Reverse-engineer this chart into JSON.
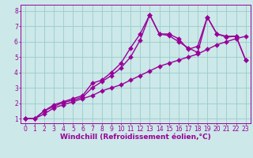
{
  "line1_x": [
    0,
    1,
    2,
    3,
    4,
    5,
    6,
    7,
    8,
    9,
    10,
    11,
    12,
    13,
    14,
    15,
    16,
    17,
    18,
    19,
    20,
    21,
    22,
    23
  ],
  "line1_y": [
    1.0,
    1.0,
    1.3,
    1.7,
    1.9,
    2.1,
    2.3,
    2.5,
    2.8,
    3.0,
    3.2,
    3.5,
    3.8,
    4.1,
    4.4,
    4.6,
    4.8,
    5.0,
    5.2,
    5.5,
    5.8,
    6.0,
    6.2,
    6.35
  ],
  "line2_x": [
    0,
    1,
    2,
    3,
    4,
    5,
    6,
    7,
    8,
    9,
    10,
    11,
    12,
    13,
    14,
    15,
    16,
    17,
    18,
    19,
    20,
    21,
    22,
    23
  ],
  "line2_y": [
    1.0,
    1.0,
    1.5,
    1.9,
    2.1,
    2.3,
    2.5,
    3.3,
    3.5,
    4.0,
    4.6,
    5.6,
    6.5,
    7.75,
    6.5,
    6.5,
    6.2,
    5.5,
    5.7,
    7.6,
    6.5,
    6.35,
    6.35,
    4.8
  ],
  "line3_x": [
    0,
    1,
    2,
    3,
    4,
    5,
    6,
    7,
    8,
    9,
    10,
    11,
    12,
    13,
    14,
    15,
    16,
    17,
    18,
    19,
    20,
    21,
    22,
    23
  ],
  "line3_y": [
    1.0,
    1.0,
    1.5,
    1.8,
    2.05,
    2.2,
    2.4,
    3.0,
    3.4,
    3.8,
    4.3,
    5.0,
    6.1,
    7.75,
    6.5,
    6.4,
    6.0,
    5.6,
    5.3,
    7.6,
    6.5,
    6.3,
    6.35,
    4.8
  ],
  "color": "#990099",
  "bg_color": "#cce8e8",
  "grid_color": "#99cccc",
  "xlabel": "Windchill (Refroidissement éolien,°C)",
  "xlim_min": -0.5,
  "xlim_max": 23.5,
  "ylim_min": 0.7,
  "ylim_max": 8.4,
  "xticks": [
    0,
    1,
    2,
    3,
    4,
    5,
    6,
    7,
    8,
    9,
    10,
    11,
    12,
    13,
    14,
    15,
    16,
    17,
    18,
    19,
    20,
    21,
    22,
    23
  ],
  "yticks": [
    1,
    2,
    3,
    4,
    5,
    6,
    7,
    8
  ],
  "markersize": 3,
  "linewidth": 1.0,
  "xlabel_fontsize": 6.5,
  "tick_fontsize": 5.5,
  "xlabel_color": "#990099",
  "tick_color": "#990099",
  "spine_color": "#990099"
}
